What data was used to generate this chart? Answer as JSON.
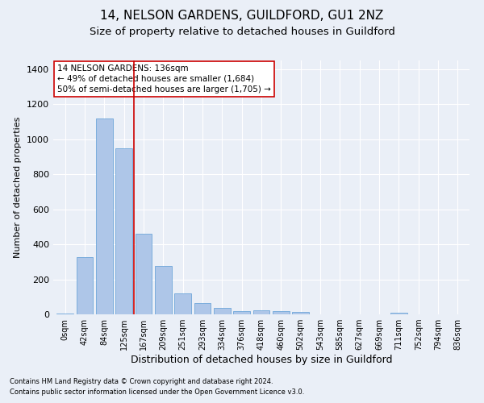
{
  "title1": "14, NELSON GARDENS, GUILDFORD, GU1 2NZ",
  "title2": "Size of property relative to detached houses in Guildford",
  "xlabel": "Distribution of detached houses by size in Guildford",
  "ylabel": "Number of detached properties",
  "footnote1": "Contains HM Land Registry data © Crown copyright and database right 2024.",
  "footnote2": "Contains public sector information licensed under the Open Government Licence v3.0.",
  "categories": [
    "0sqm",
    "42sqm",
    "84sqm",
    "125sqm",
    "167sqm",
    "209sqm",
    "251sqm",
    "293sqm",
    "334sqm",
    "376sqm",
    "418sqm",
    "460sqm",
    "502sqm",
    "543sqm",
    "585sqm",
    "627sqm",
    "669sqm",
    "711sqm",
    "752sqm",
    "794sqm",
    "836sqm"
  ],
  "values": [
    5,
    325,
    1120,
    950,
    460,
    275,
    120,
    65,
    35,
    20,
    22,
    18,
    14,
    0,
    0,
    0,
    0,
    8,
    0,
    0,
    0
  ],
  "bar_color": "#aec6e8",
  "bar_edge_color": "#5b9bd5",
  "vline_x": 3.5,
  "vline_color": "#cc0000",
  "annotation_line1": "14 NELSON GARDENS: 136sqm",
  "annotation_line2": "← 49% of detached houses are smaller (1,684)",
  "annotation_line3": "50% of semi-detached houses are larger (1,705) →",
  "annotation_box_color": "#ffffff",
  "annotation_box_edge": "#cc0000",
  "ylim": [
    0,
    1450
  ],
  "yticks": [
    0,
    200,
    400,
    600,
    800,
    1000,
    1200,
    1400
  ],
  "bg_color": "#eaeff7",
  "plot_bg_color": "#eaeff7",
  "grid_color": "#ffffff",
  "title1_fontsize": 11,
  "title2_fontsize": 9.5,
  "xlabel_fontsize": 9,
  "ylabel_fontsize": 8,
  "footnote_fontsize": 6,
  "annotation_fontsize": 7.5
}
